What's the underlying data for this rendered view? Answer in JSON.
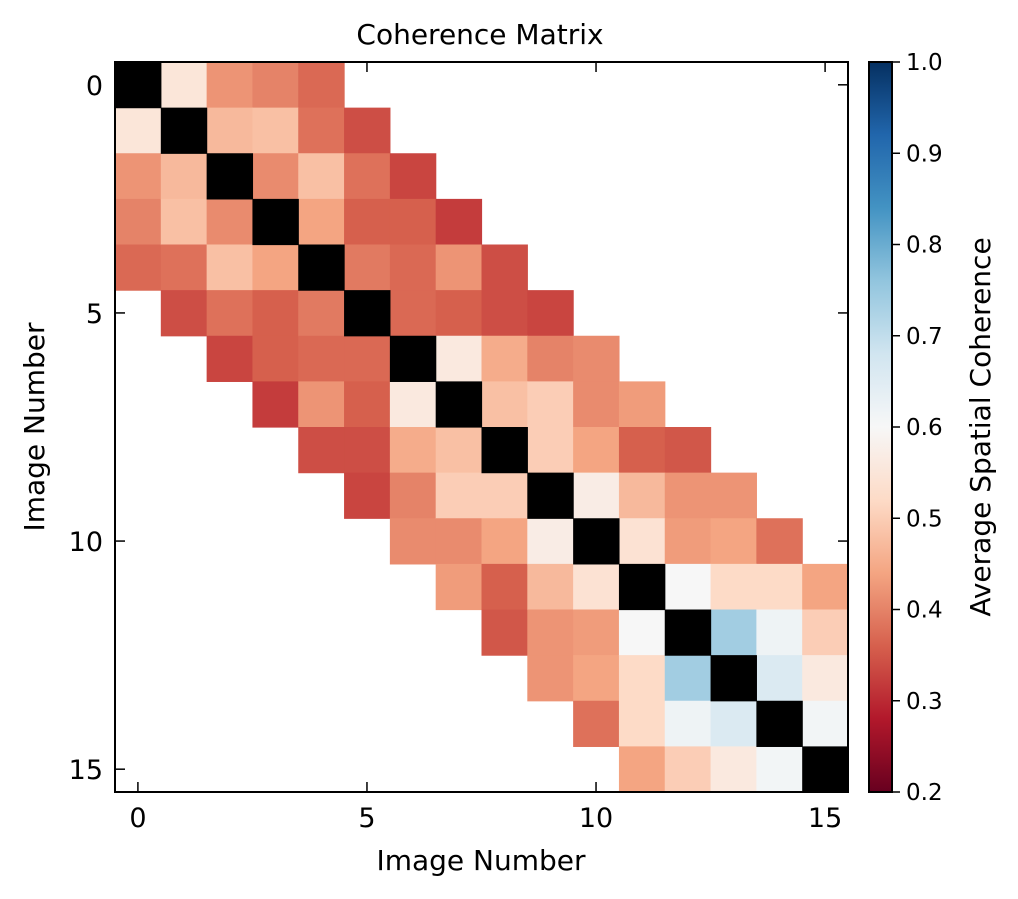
{
  "chart_data": {
    "type": "heatmap",
    "title": "Coherence Matrix",
    "xlabel": "Image Number",
    "ylabel": "Image Number",
    "colorbar_label": "Average Spatial Coherence",
    "size": 16,
    "x_ticks": [
      0,
      5,
      10,
      15
    ],
    "y_ticks": [
      0,
      5,
      10,
      15
    ],
    "colorbar_ticks": [
      "0.2",
      "0.3",
      "0.4",
      "0.5",
      "0.6",
      "0.7",
      "0.8",
      "0.9",
      "1.0"
    ],
    "colorbar_range": [
      0.2,
      1.0
    ],
    "colormap": "RdBu",
    "diagonal_color": "#000000",
    "cells": [
      {
        "i": 0,
        "j": 1,
        "v": 0.55
      },
      {
        "i": 0,
        "j": 2,
        "v": 0.42
      },
      {
        "i": 0,
        "j": 3,
        "v": 0.4
      },
      {
        "i": 0,
        "j": 4,
        "v": 0.37
      },
      {
        "i": 1,
        "j": 2,
        "v": 0.47
      },
      {
        "i": 1,
        "j": 3,
        "v": 0.48
      },
      {
        "i": 1,
        "j": 4,
        "v": 0.38
      },
      {
        "i": 1,
        "j": 5,
        "v": 0.34
      },
      {
        "i": 2,
        "j": 3,
        "v": 0.41
      },
      {
        "i": 2,
        "j": 4,
        "v": 0.48
      },
      {
        "i": 2,
        "j": 5,
        "v": 0.38
      },
      {
        "i": 2,
        "j": 6,
        "v": 0.33
      },
      {
        "i": 3,
        "j": 4,
        "v": 0.44
      },
      {
        "i": 3,
        "j": 5,
        "v": 0.36
      },
      {
        "i": 3,
        "j": 6,
        "v": 0.36
      },
      {
        "i": 3,
        "j": 7,
        "v": 0.32
      },
      {
        "i": 4,
        "j": 5,
        "v": 0.39
      },
      {
        "i": 4,
        "j": 6,
        "v": 0.37
      },
      {
        "i": 4,
        "j": 7,
        "v": 0.42
      },
      {
        "i": 4,
        "j": 8,
        "v": 0.34
      },
      {
        "i": 5,
        "j": 6,
        "v": 0.37
      },
      {
        "i": 5,
        "j": 7,
        "v": 0.36
      },
      {
        "i": 5,
        "j": 8,
        "v": 0.34
      },
      {
        "i": 5,
        "j": 9,
        "v": 0.33
      },
      {
        "i": 6,
        "j": 7,
        "v": 0.56
      },
      {
        "i": 6,
        "j": 8,
        "v": 0.45
      },
      {
        "i": 6,
        "j": 9,
        "v": 0.4
      },
      {
        "i": 6,
        "j": 10,
        "v": 0.41
      },
      {
        "i": 7,
        "j": 8,
        "v": 0.48
      },
      {
        "i": 7,
        "j": 9,
        "v": 0.5
      },
      {
        "i": 7,
        "j": 10,
        "v": 0.41
      },
      {
        "i": 7,
        "j": 11,
        "v": 0.43
      },
      {
        "i": 8,
        "j": 9,
        "v": 0.5
      },
      {
        "i": 8,
        "j": 10,
        "v": 0.44
      },
      {
        "i": 8,
        "j": 11,
        "v": 0.36
      },
      {
        "i": 8,
        "j": 12,
        "v": 0.35
      },
      {
        "i": 9,
        "j": 10,
        "v": 0.57
      },
      {
        "i": 9,
        "j": 11,
        "v": 0.47
      },
      {
        "i": 9,
        "j": 12,
        "v": 0.42
      },
      {
        "i": 9,
        "j": 13,
        "v": 0.42
      },
      {
        "i": 10,
        "j": 11,
        "v": 0.54
      },
      {
        "i": 10,
        "j": 12,
        "v": 0.43
      },
      {
        "i": 10,
        "j": 13,
        "v": 0.44
      },
      {
        "i": 10,
        "j": 14,
        "v": 0.38
      },
      {
        "i": 11,
        "j": 12,
        "v": 0.6
      },
      {
        "i": 11,
        "j": 13,
        "v": 0.52
      },
      {
        "i": 11,
        "j": 14,
        "v": 0.52
      },
      {
        "i": 11,
        "j": 15,
        "v": 0.44
      },
      {
        "i": 12,
        "j": 13,
        "v": 0.74
      },
      {
        "i": 12,
        "j": 14,
        "v": 0.62
      },
      {
        "i": 12,
        "j": 15,
        "v": 0.5
      },
      {
        "i": 13,
        "j": 14,
        "v": 0.66
      },
      {
        "i": 13,
        "j": 15,
        "v": 0.56
      },
      {
        "i": 14,
        "j": 15,
        "v": 0.61
      }
    ]
  }
}
